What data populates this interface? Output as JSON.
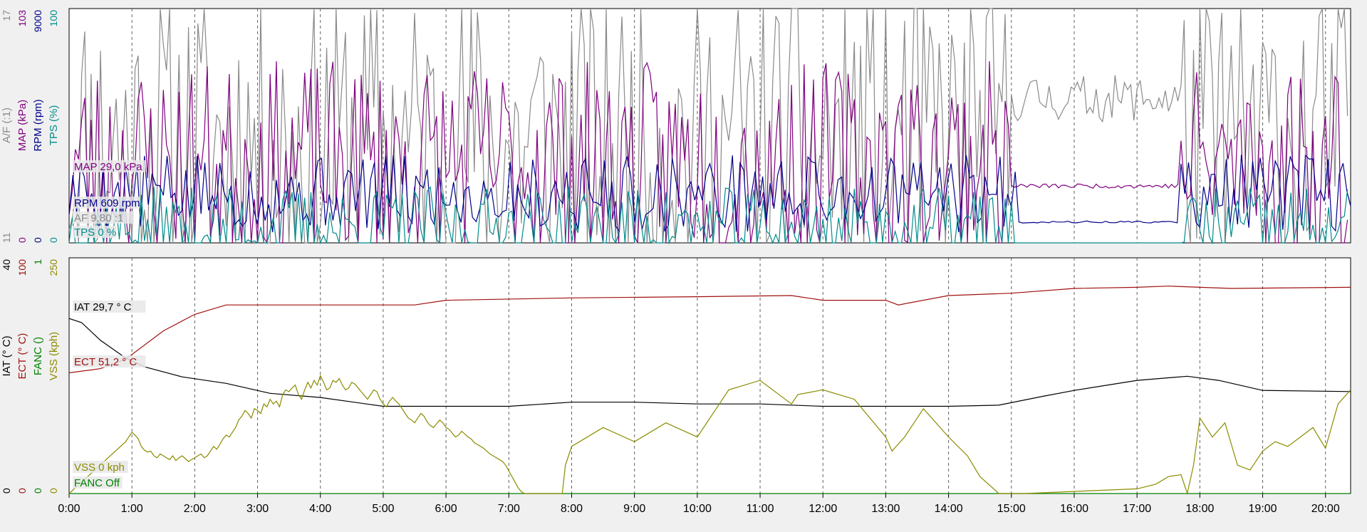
{
  "chart_data": [
    {
      "type": "line",
      "panel": "top",
      "x_range_min": [
        0,
        20.4
      ],
      "grid": "vertical-dashed",
      "series": [
        {
          "name": "A/F (:1)",
          "axis_label": "A/F (:1)",
          "range": [
            11,
            17
          ],
          "top_tick": "17",
          "bottom_tick": "11",
          "color": "#8a8a8a",
          "readout": "AF 9,80 :1",
          "style": "noise",
          "noise": {
            "seed": 11,
            "step": 0.05,
            "base": 13.5,
            "amp": 4.2
          },
          "calm": [
            {
              "x": [
                15.0,
                17.7
              ],
              "base": 14.7,
              "amp": 0.6
            }
          ]
        },
        {
          "name": "MAP (kPa)",
          "axis_label": "MAP (kPa)",
          "range": [
            0,
            103
          ],
          "top_tick": "103",
          "bottom_tick": "0",
          "color": "#800080",
          "readout": "MAP 29,0 kPa",
          "style": "noise",
          "noise": {
            "seed": 23,
            "step": 0.05,
            "base": 35,
            "amp": 45
          },
          "calm": [
            {
              "x": [
                15.0,
                17.7
              ],
              "base": 25,
              "amp": 1
            }
          ]
        },
        {
          "name": "RPM (rpm)",
          "axis_label": "RPM (rpm)",
          "range": [
            0,
            9000
          ],
          "top_tick": "9000",
          "bottom_tick": "0",
          "color": "#00008b",
          "readout": "RPM 609 rpm",
          "style": "noise",
          "noise": {
            "seed": 5,
            "step": 0.06,
            "base": 1900,
            "amp": 1500
          },
          "calm": [
            {
              "x": [
                15.1,
                17.7
              ],
              "base": 800,
              "amp": 40
            }
          ]
        },
        {
          "name": "TPS (%)",
          "axis_label": "TPS (%)",
          "range": [
            0,
            100
          ],
          "top_tick": "100",
          "bottom_tick": "0",
          "color": "#008b8b",
          "readout": "TPS 0 %",
          "style": "noise",
          "noise": {
            "seed": 37,
            "step": 0.05,
            "base": 6,
            "amp": 18
          },
          "calm": [
            {
              "x": [
                15.1,
                17.7
              ],
              "base": 0,
              "amp": 0
            }
          ]
        }
      ]
    },
    {
      "type": "line",
      "panel": "bottom",
      "x_range_min": [
        0,
        20.4
      ],
      "x_tick_labels": [
        "0:00",
        "1:00",
        "2:00",
        "3:00",
        "4:00",
        "5:00",
        "6:00",
        "7:00",
        "8:00",
        "9:00",
        "10:00",
        "11:00",
        "12:00",
        "13:00",
        "14:00",
        "15:00",
        "16:00",
        "17:00",
        "18:00",
        "19:00",
        "20:00"
      ],
      "grid": "vertical-dashed",
      "series": [
        {
          "name": "IAT (°C)",
          "axis_label": "IAT (° C)",
          "range": [
            0,
            40
          ],
          "top_tick": "40",
          "bottom_tick": "0",
          "color": "#000000",
          "readout": "IAT 29,7 ° C",
          "x": [
            0,
            0.2,
            0.5,
            0.9,
            1.2,
            1.8,
            2.5,
            3.2,
            4.0,
            5.0,
            6.0,
            7.0,
            8.0,
            9.0,
            10.0,
            11.0,
            12.0,
            13.0,
            14.0,
            14.8,
            15.5,
            16.0,
            17.0,
            17.8,
            18.3,
            19.0,
            20.4
          ],
          "y": [
            29.7,
            29.0,
            26.0,
            23.0,
            21.5,
            19.8,
            18.7,
            17.0,
            16.3,
            14.8,
            14.8,
            14.8,
            15.5,
            15.5,
            15.2,
            15.2,
            14.8,
            14.8,
            14.8,
            15.0,
            16.5,
            17.5,
            19.2,
            19.9,
            19.2,
            17.5,
            17.3
          ]
        },
        {
          "name": "ECT (°C)",
          "axis_label": "ECT (° C)",
          "range": [
            0,
            100
          ],
          "top_tick": "100",
          "bottom_tick": "0",
          "color": "#a01010",
          "readout": "ECT 51,2 ° C",
          "x": [
            0,
            0.5,
            0.9,
            1.5,
            2.0,
            2.5,
            4.0,
            5.5,
            6.0,
            8.0,
            10.0,
            11.5,
            12.0,
            13.0,
            13.2,
            14.0,
            15.0,
            16.0,
            17.0,
            17.5,
            18.5,
            20.4
          ],
          "y": [
            51.2,
            53.0,
            57.0,
            69.0,
            76.0,
            80.0,
            80.0,
            80.0,
            82.0,
            83.0,
            83.5,
            84.0,
            82.0,
            82.0,
            80.0,
            84.0,
            85.0,
            87.0,
            87.5,
            88.0,
            87.0,
            87.5
          ]
        },
        {
          "name": "FANC ()",
          "axis_label": "FANC ()",
          "range": [
            0,
            1
          ],
          "top_tick": "1",
          "bottom_tick": "0",
          "color": "#008000",
          "readout": "FANC Off",
          "x": [
            0,
            20.4
          ],
          "y": [
            0,
            0
          ]
        },
        {
          "name": "VSS (kph)",
          "axis_label": "VSS (kph)",
          "range": [
            0,
            250
          ],
          "top_tick": "250",
          "bottom_tick": "0",
          "color": "#8b8b00",
          "readout": "VSS 0 kph",
          "x": [
            0,
            0.9,
            1.0,
            1.05,
            1.1,
            1.15,
            1.2,
            1.25,
            1.3,
            1.35,
            1.4,
            1.45,
            1.5,
            1.55,
            1.6,
            1.65,
            1.7,
            1.75,
            1.8,
            1.85,
            1.9,
            1.95,
            2.0,
            2.05,
            2.1,
            2.15,
            2.2,
            2.25,
            2.3,
            2.35,
            2.4,
            2.45,
            2.5,
            2.55,
            2.6,
            2.65,
            2.7,
            2.75,
            2.8,
            2.85,
            2.9,
            2.95,
            3.0,
            3.05,
            3.1,
            3.15,
            3.2,
            3.25,
            3.3,
            3.35,
            3.4,
            3.45,
            3.5,
            3.55,
            3.6,
            3.65,
            3.7,
            3.75,
            3.8,
            3.85,
            3.9,
            3.95,
            4.0,
            4.05,
            4.1,
            4.15,
            4.2,
            4.25,
            4.3,
            4.35,
            4.4,
            4.45,
            4.5,
            4.55,
            4.6,
            4.65,
            4.7,
            4.75,
            4.8,
            4.85,
            4.9,
            4.95,
            5.0,
            5.05,
            5.1,
            5.15,
            5.2,
            5.25,
            5.3,
            5.35,
            5.4,
            5.45,
            5.5,
            5.55,
            5.6,
            5.65,
            5.7,
            5.75,
            5.8,
            5.85,
            5.9,
            5.95,
            6.0,
            6.05,
            6.1,
            6.15,
            6.2,
            6.25,
            6.3,
            6.35,
            6.4,
            6.45,
            6.5,
            6.55,
            6.6,
            6.65,
            6.7,
            6.75,
            6.8,
            6.85,
            6.9,
            6.95,
            7.0,
            7.05,
            7.1,
            7.15,
            7.2,
            7.25,
            7.3,
            7.35,
            7.4,
            7.45,
            7.5,
            7.55,
            7.6,
            7.65,
            7.7,
            7.75,
            7.8,
            7.85,
            7.9,
            7.95,
            8.0,
            8.5,
            9.0,
            9.5,
            10.0,
            10.5,
            11.0,
            11.5,
            11.6,
            12.0,
            12.5,
            13.0,
            13.1,
            13.3,
            13.6,
            14.0,
            14.3,
            14.5,
            14.8,
            15.0,
            15.1,
            15.2,
            17.0,
            17.3,
            17.5,
            17.7,
            17.8,
            17.9,
            18.0,
            18.2,
            18.4,
            18.6,
            18.8,
            19.0,
            19.2,
            19.4,
            19.6,
            19.8,
            20.0,
            20.2,
            20.4
          ],
          "y": [
            0,
            55,
            65,
            62,
            58,
            50,
            46,
            44,
            45,
            40,
            38,
            42,
            40,
            38,
            36,
            40,
            35,
            38,
            40,
            37,
            34,
            36,
            38,
            40,
            42,
            38,
            40,
            45,
            50,
            47,
            52,
            58,
            62,
            60,
            65,
            70,
            78,
            82,
            88,
            85,
            80,
            90,
            88,
            85,
            95,
            92,
            100,
            95,
            98,
            92,
            105,
            110,
            108,
            112,
            115,
            105,
            100,
            110,
            118,
            112,
            120,
            115,
            125,
            118,
            110,
            112,
            120,
            118,
            122,
            115,
            110,
            112,
            118,
            116,
            112,
            108,
            104,
            100,
            105,
            110,
            108,
            100,
            95,
            92,
            98,
            102,
            98,
            95,
            90,
            85,
            80,
            78,
            75,
            80,
            85,
            82,
            76,
            72,
            70,
            74,
            78,
            75,
            70,
            68,
            64,
            60,
            62,
            66,
            63,
            60,
            58,
            54,
            52,
            50,
            48,
            45,
            42,
            40,
            38,
            36,
            34,
            30,
            24,
            18,
            12,
            6,
            2,
            0,
            0,
            0,
            0,
            0,
            0,
            0,
            0,
            0,
            0,
            0,
            0,
            0,
            30,
            40,
            50,
            70,
            55,
            75,
            60,
            110,
            120,
            95,
            105,
            110,
            100,
            60,
            45,
            60,
            90,
            60,
            40,
            18,
            0,
            0,
            0,
            0,
            5,
            10,
            18,
            20,
            0,
            30,
            80,
            60,
            75,
            30,
            25,
            45,
            55,
            50,
            60,
            70,
            48,
            95,
            110
          ]
        }
      ]
    }
  ]
}
